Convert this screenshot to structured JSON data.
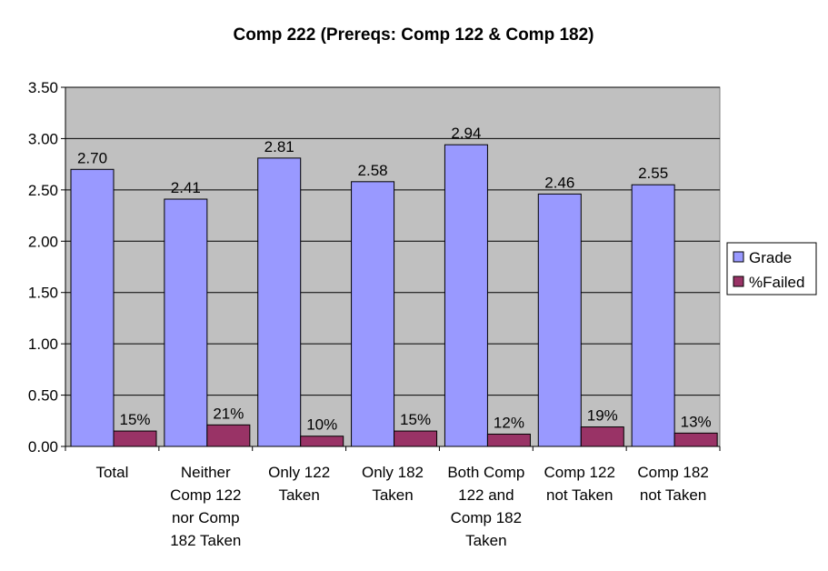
{
  "chart_data": {
    "type": "bar",
    "title": "Comp 222 (Prereqs: Comp 122 & Comp 182)",
    "xlabel": "",
    "ylabel": "",
    "ylim": [
      0,
      3.5
    ],
    "yticks": [
      "0.00",
      "0.50",
      "1.00",
      "1.50",
      "2.00",
      "2.50",
      "3.00",
      "3.50"
    ],
    "categories": [
      [
        "Total"
      ],
      [
        "Neither",
        "Comp 122",
        "nor Comp",
        "182 Taken"
      ],
      [
        "Only 122",
        "Taken"
      ],
      [
        "Only 182",
        "Taken"
      ],
      [
        "Both Comp",
        "122 and",
        "Comp 182",
        "Taken"
      ],
      [
        "Comp 122",
        "not Taken"
      ],
      [
        "Comp 182",
        "not Taken"
      ]
    ],
    "series": [
      {
        "name": "Grade",
        "color": "#9999ff",
        "values": [
          2.7,
          2.41,
          2.81,
          2.58,
          2.94,
          2.46,
          2.55
        ],
        "labels": [
          "2.70",
          "2.41",
          "2.81",
          "2.58",
          "2.94",
          "2.46",
          "2.55"
        ]
      },
      {
        "name": "%Failed",
        "color": "#993366",
        "values": [
          0.15,
          0.21,
          0.1,
          0.15,
          0.12,
          0.19,
          0.13
        ],
        "labels": [
          "15%",
          "21%",
          "10%",
          "15%",
          "12%",
          "19%",
          "13%"
        ]
      }
    ],
    "grid": true,
    "plot_background": "#c0c0c0",
    "legend_position": "right"
  }
}
